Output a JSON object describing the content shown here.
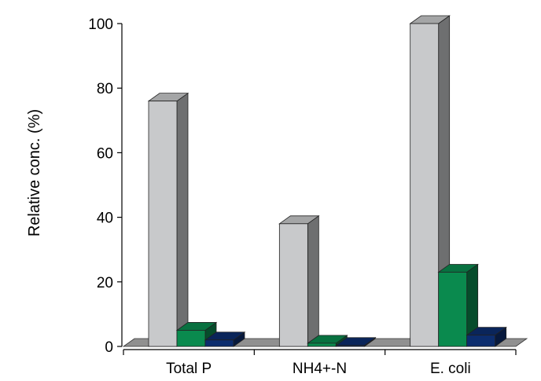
{
  "chart_data": {
    "type": "bar",
    "style": "3d-clustered",
    "title": "",
    "xlabel": "",
    "ylabel": "Relative conc. (%)",
    "ylim": [
      0,
      100
    ],
    "yticks": [
      0,
      20,
      40,
      60,
      80,
      100
    ],
    "grid": false,
    "legend": "none",
    "categories": [
      "Total P",
      "NH4+-N",
      "E. coli"
    ],
    "series": [
      {
        "values": [
          76,
          38,
          100
        ],
        "color": "#c8c9cb"
      },
      {
        "values": [
          5,
          1,
          23
        ],
        "color": "#0a8a4e"
      },
      {
        "values": [
          2,
          0.3,
          3.5
        ],
        "color": "#0c2d6e"
      }
    ]
  }
}
